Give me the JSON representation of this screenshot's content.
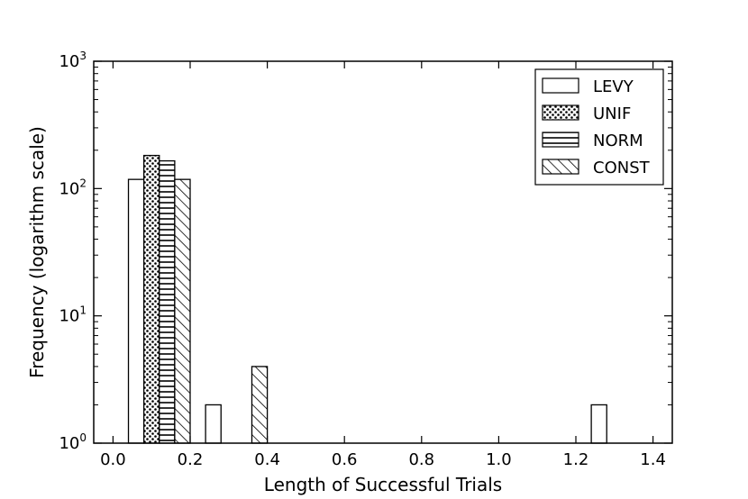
{
  "chart_data": {
    "type": "bar",
    "title": "",
    "xlabel": "Length of Successful Trials",
    "ylabel": "Frequency (logarithm scale)",
    "xlim": [
      -0.05,
      1.45
    ],
    "ylim": [
      1,
      1000
    ],
    "yscale": "log",
    "xticks": [
      "0.0",
      "0.2",
      "0.4",
      "0.6",
      "0.8",
      "1.0",
      "1.2",
      "1.4"
    ],
    "yticks": [
      {
        "base": "10",
        "exp": "0"
      },
      {
        "base": "10",
        "exp": "1"
      },
      {
        "base": "10",
        "exp": "2"
      },
      {
        "base": "10",
        "exp": "3"
      }
    ],
    "legend_position": "top-right",
    "bar_group_width": 0.16,
    "series": [
      {
        "name": "LEVY",
        "pattern": "empty",
        "bins": [
          {
            "x": 0.04,
            "value": 118
          },
          {
            "x": 0.24,
            "value": 2
          },
          {
            "x": 1.24,
            "value": 2
          }
        ]
      },
      {
        "name": "UNIF",
        "pattern": "dots",
        "bins": [
          {
            "x": 0.08,
            "value": 182
          }
        ]
      },
      {
        "name": "NORM",
        "pattern": "horizontal",
        "bins": [
          {
            "x": 0.12,
            "value": 165
          }
        ]
      },
      {
        "name": "CONST",
        "pattern": "diagonal",
        "bins": [
          {
            "x": 0.16,
            "value": 118
          },
          {
            "x": 0.36,
            "value": 4
          }
        ]
      }
    ]
  }
}
